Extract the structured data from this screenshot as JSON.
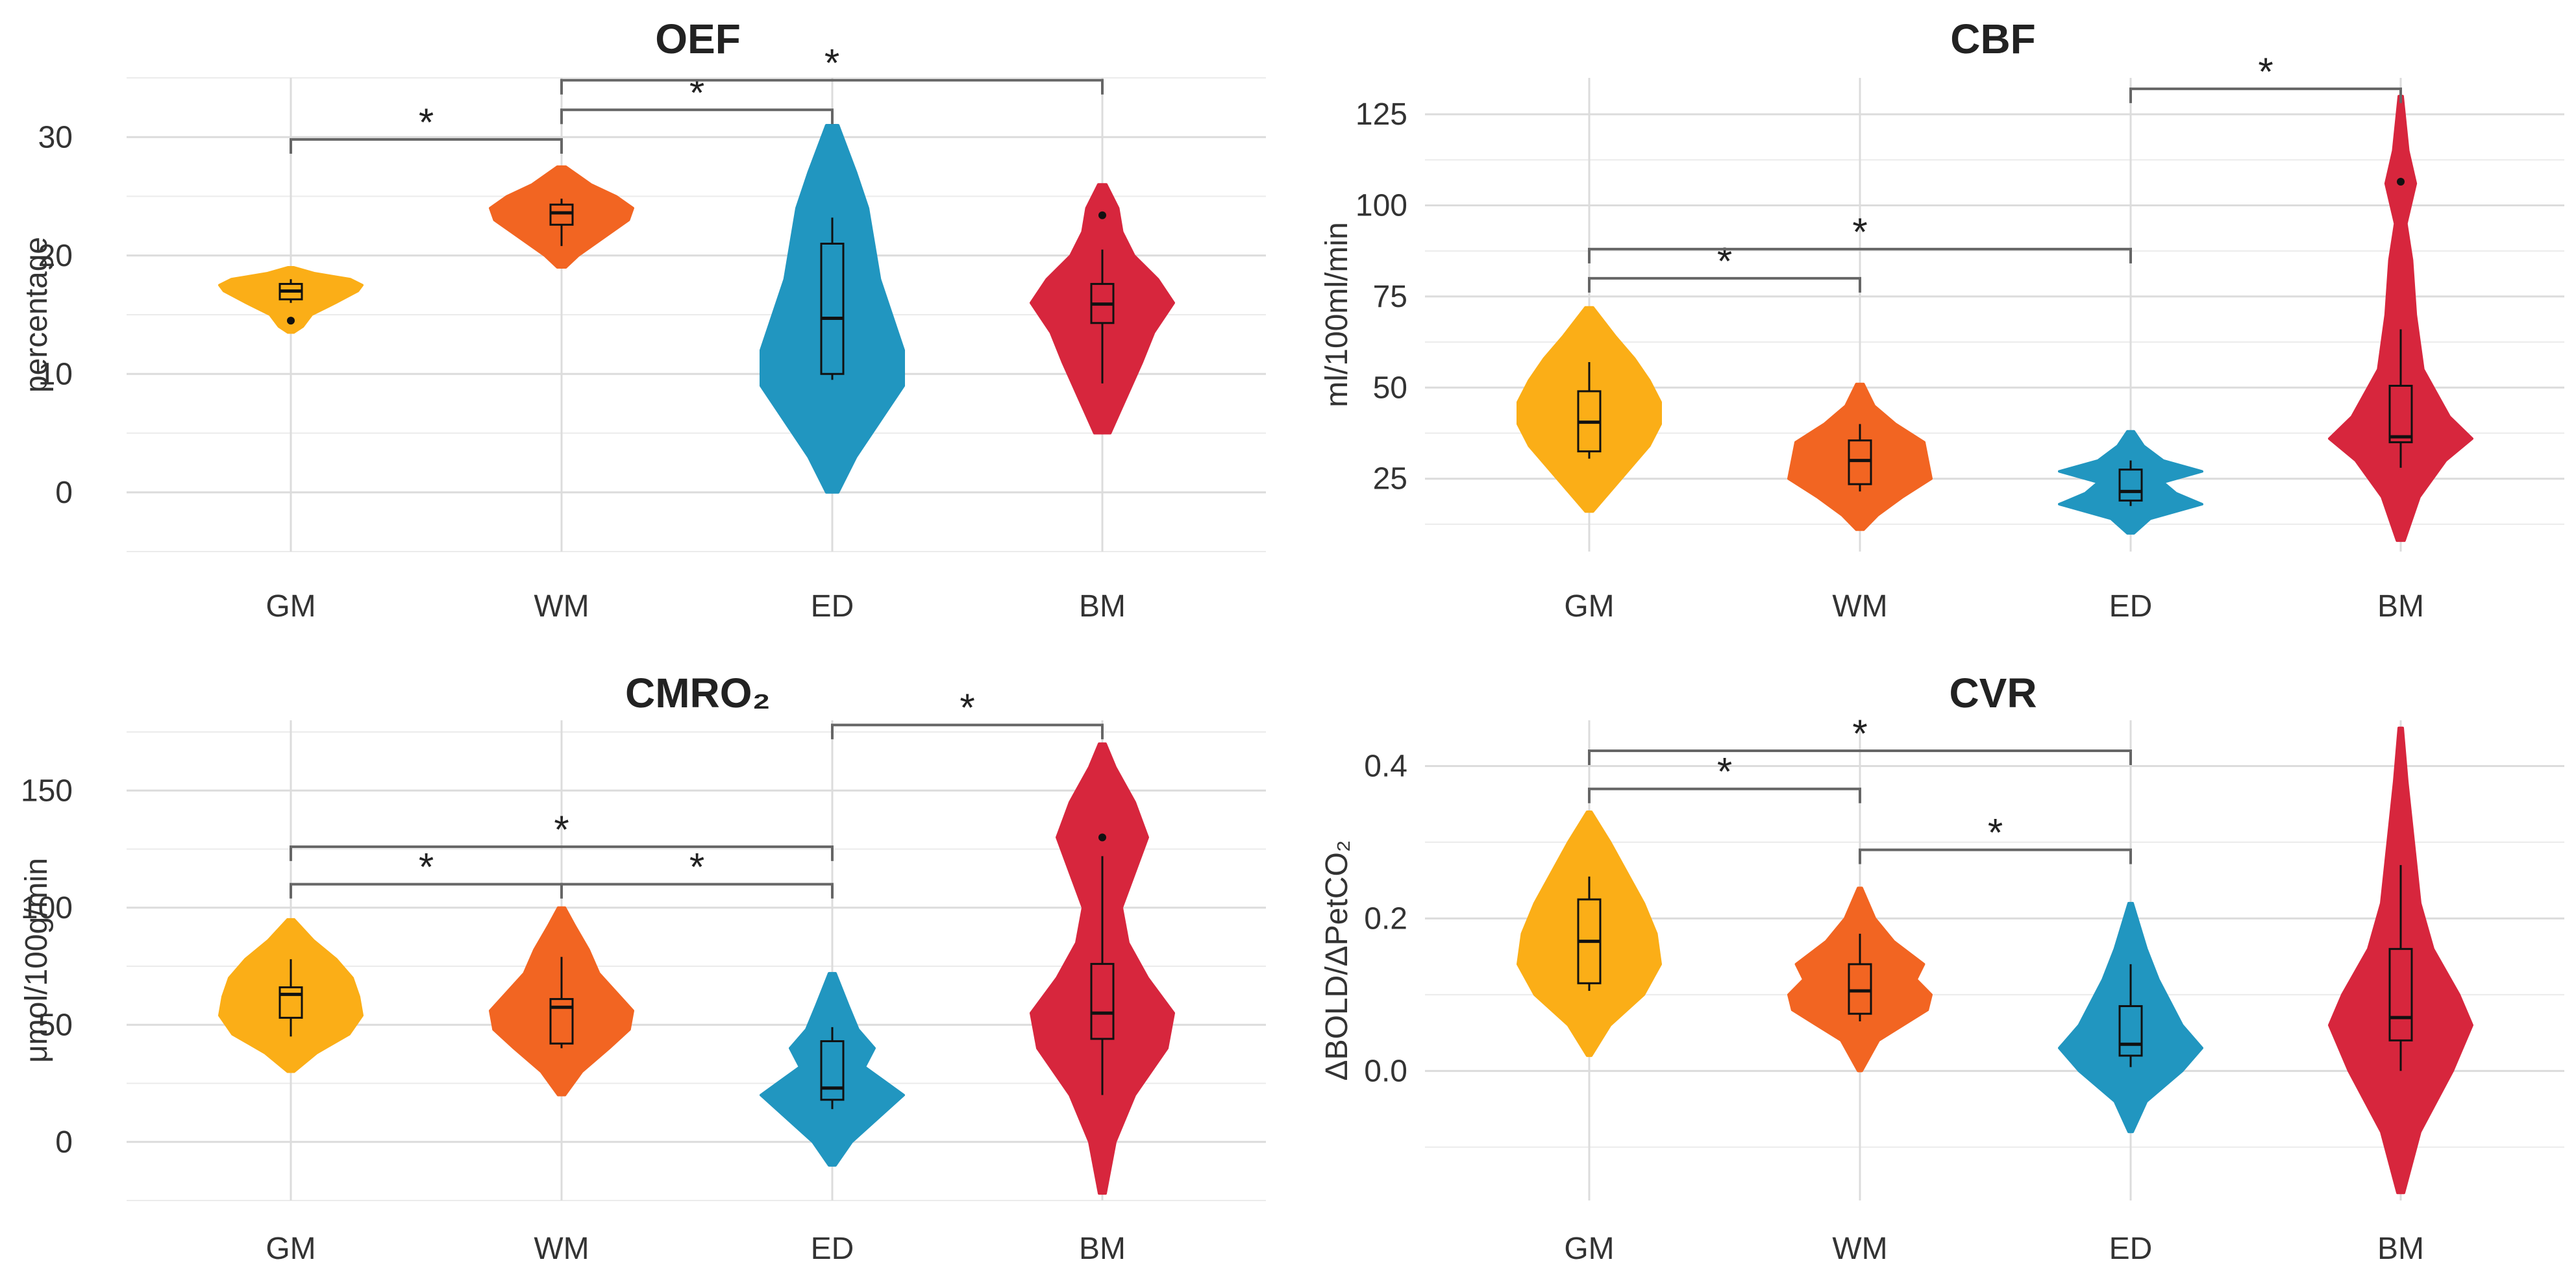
{
  "chart_data": [
    {
      "type": "violin",
      "title": "OEF",
      "xlabel": "",
      "ylabel": "percentage",
      "ylim": [
        -5,
        35
      ],
      "yticks": [
        0,
        10,
        20,
        30
      ],
      "categories": [
        "GM",
        "WM",
        "ED",
        "BM"
      ],
      "colors": [
        "#FBAE17",
        "#F26522",
        "#2196C0",
        "#D7263D"
      ],
      "violins": [
        {
          "category": "GM",
          "min": 13.5,
          "max": 19,
          "profile": [
            [
              13.5,
              2
            ],
            [
              14,
              8
            ],
            [
              15,
              14
            ],
            [
              16,
              30
            ],
            [
              17,
              45
            ],
            [
              17.5,
              48
            ],
            [
              18,
              40
            ],
            [
              18.5,
              16
            ],
            [
              19,
              2
            ]
          ]
        },
        {
          "category": "WM",
          "min": 19,
          "max": 27.5,
          "profile": [
            [
              19,
              2
            ],
            [
              20,
              8
            ],
            [
              21,
              16
            ],
            [
              22,
              24
            ],
            [
              23,
              32
            ],
            [
              24,
              34
            ],
            [
              25,
              26
            ],
            [
              26,
              14
            ],
            [
              27.5,
              2
            ]
          ]
        },
        {
          "category": "ED",
          "min": 0,
          "max": 31,
          "profile": [
            [
              0,
              0.5
            ],
            [
              3,
              2
            ],
            [
              6,
              4
            ],
            [
              9,
              6
            ],
            [
              12,
              6
            ],
            [
              15,
              5
            ],
            [
              18,
              4
            ],
            [
              21,
              3.5
            ],
            [
              24,
              3
            ],
            [
              27,
              2
            ],
            [
              31,
              0.5
            ]
          ]
        },
        {
          "category": "BM",
          "min": 5,
          "max": 26,
          "profile": [
            [
              5,
              2
            ],
            [
              8,
              6
            ],
            [
              11,
              10
            ],
            [
              13.5,
              13
            ],
            [
              16,
              18
            ],
            [
              18,
              14
            ],
            [
              20,
              8
            ],
            [
              22,
              5
            ],
            [
              24,
              4
            ],
            [
              26,
              1
            ]
          ]
        }
      ],
      "boxes": [
        {
          "category": "GM",
          "q1": 16.3,
          "median": 17,
          "q3": 17.6,
          "whisker_low": 16,
          "whisker_high": 18,
          "outliers": [
            14.5
          ]
        },
        {
          "category": "WM",
          "q1": 22.6,
          "median": 23.6,
          "q3": 24.3,
          "whisker_low": 20.8,
          "whisker_high": 24.8,
          "outliers": []
        },
        {
          "category": "ED",
          "q1": 10,
          "median": 14.7,
          "q3": 21,
          "whisker_low": 9.5,
          "whisker_high": 23.2,
          "outliers": []
        },
        {
          "category": "BM",
          "q1": 14.3,
          "median": 15.9,
          "q3": 17.6,
          "whisker_low": 9.2,
          "whisker_high": 20.5,
          "outliers": [
            23.4
          ]
        }
      ],
      "significance": [
        {
          "from": "GM",
          "to": "WM",
          "y": 29.8,
          "label": "*"
        },
        {
          "from": "WM",
          "to": "ED",
          "y": 32.3,
          "label": "*"
        },
        {
          "from": "WM",
          "to": "BM",
          "y": 34.8,
          "label": "*"
        }
      ]
    },
    {
      "type": "violin",
      "title": "CBF",
      "xlabel": "",
      "ylabel": "ml/100ml/min",
      "ylim": [
        5,
        135
      ],
      "yticks": [
        25,
        50,
        75,
        100,
        125
      ],
      "categories": [
        "GM",
        "WM",
        "ED",
        "BM"
      ],
      "colors": [
        "#FBAE17",
        "#F26522",
        "#2196C0",
        "#D7263D"
      ],
      "violins": [
        {
          "category": "GM",
          "min": 16,
          "max": 72,
          "profile": [
            [
              16,
              1
            ],
            [
              22,
              6
            ],
            [
              28,
              11
            ],
            [
              34,
              16
            ],
            [
              40,
              19
            ],
            [
              46,
              19
            ],
            [
              52,
              16
            ],
            [
              58,
              12
            ],
            [
              64,
              7
            ],
            [
              72,
              1
            ]
          ]
        },
        {
          "category": "WM",
          "min": 11,
          "max": 51,
          "profile": [
            [
              11,
              1
            ],
            [
              15,
              5
            ],
            [
              20,
              12
            ],
            [
              25,
              20
            ],
            [
              30,
              19
            ],
            [
              35,
              18
            ],
            [
              40,
              10
            ],
            [
              45,
              4
            ],
            [
              51,
              1
            ]
          ]
        },
        {
          "category": "ED",
          "min": 10,
          "max": 38,
          "profile": [
            [
              10,
              1
            ],
            [
              14,
              6
            ],
            [
              18,
              22
            ],
            [
              21,
              14
            ],
            [
              24,
              10
            ],
            [
              27,
              22
            ],
            [
              30,
              10
            ],
            [
              34,
              4
            ],
            [
              38,
              1
            ]
          ]
        },
        {
          "category": "BM",
          "min": 8,
          "max": 130,
          "profile": [
            [
              8,
              1
            ],
            [
              20,
              5
            ],
            [
              30,
              12
            ],
            [
              36,
              19
            ],
            [
              42,
              13
            ],
            [
              55,
              6
            ],
            [
              70,
              4
            ],
            [
              85,
              3
            ],
            [
              95,
              1.5
            ],
            [
              106,
              4
            ],
            [
              115,
              2
            ],
            [
              130,
              0.5
            ]
          ]
        }
      ],
      "boxes": [
        {
          "category": "GM",
          "q1": 32.5,
          "median": 40.5,
          "q3": 49,
          "whisker_low": 30.5,
          "whisker_high": 57,
          "outliers": []
        },
        {
          "category": "WM",
          "q1": 23.5,
          "median": 30,
          "q3": 35.5,
          "whisker_low": 21.5,
          "whisker_high": 40,
          "outliers": []
        },
        {
          "category": "ED",
          "q1": 19,
          "median": 21.5,
          "q3": 27.5,
          "whisker_low": 17.5,
          "whisker_high": 30,
          "outliers": []
        },
        {
          "category": "BM",
          "q1": 35,
          "median": 36.5,
          "q3": 50.5,
          "whisker_low": 28,
          "whisker_high": 66,
          "outliers": [
            106.5
          ]
        }
      ],
      "significance": [
        {
          "from": "GM",
          "to": "WM",
          "y": 80,
          "label": "*"
        },
        {
          "from": "GM",
          "to": "ED",
          "y": 88,
          "label": "*"
        },
        {
          "from": "ED",
          "to": "BM",
          "y": 132,
          "label": "*"
        }
      ]
    },
    {
      "type": "violin",
      "title": "CMRO₂",
      "xlabel": "",
      "ylabel": "μmol/100g/min",
      "ylim": [
        -25,
        180
      ],
      "yticks": [
        0,
        50,
        100,
        150
      ],
      "categories": [
        "GM",
        "WM",
        "ED",
        "BM"
      ],
      "colors": [
        "#FBAE17",
        "#F26522",
        "#2196C0",
        "#D7263D"
      ],
      "violins": [
        {
          "category": "GM",
          "min": 30,
          "max": 95,
          "profile": [
            [
              30,
              1
            ],
            [
              38,
              8
            ],
            [
              46,
              18
            ],
            [
              54,
              22
            ],
            [
              62,
              21
            ],
            [
              70,
              19
            ],
            [
              78,
              14
            ],
            [
              86,
              7
            ],
            [
              95,
              1
            ]
          ]
        },
        {
          "category": "WM",
          "min": 20,
          "max": 100,
          "profile": [
            [
              20,
              1
            ],
            [
              30,
              6
            ],
            [
              40,
              14
            ],
            [
              48,
              20
            ],
            [
              56,
              21
            ],
            [
              64,
              16
            ],
            [
              72,
              11
            ],
            [
              82,
              8
            ],
            [
              92,
              4
            ],
            [
              100,
              1
            ]
          ]
        },
        {
          "category": "ED",
          "min": -10,
          "max": 72,
          "profile": [
            [
              -10,
              1
            ],
            [
              0,
              6
            ],
            [
              10,
              14
            ],
            [
              20,
              22
            ],
            [
              26,
              16
            ],
            [
              32,
              10
            ],
            [
              40,
              13
            ],
            [
              48,
              8
            ],
            [
              58,
              5
            ],
            [
              72,
              1
            ]
          ]
        },
        {
          "category": "BM",
          "min": -22,
          "max": 170,
          "profile": [
            [
              -22,
              0.5
            ],
            [
              0,
              2
            ],
            [
              20,
              5
            ],
            [
              40,
              10
            ],
            [
              55,
              11
            ],
            [
              70,
              7
            ],
            [
              85,
              4
            ],
            [
              100,
              3
            ],
            [
              115,
              5
            ],
            [
              130,
              7
            ],
            [
              145,
              5
            ],
            [
              160,
              2
            ],
            [
              170,
              0.5
            ]
          ]
        }
      ],
      "boxes": [
        {
          "category": "GM",
          "q1": 53,
          "median": 63,
          "q3": 66,
          "whisker_low": 45,
          "whisker_high": 78,
          "outliers": []
        },
        {
          "category": "WM",
          "q1": 42,
          "median": 57.5,
          "q3": 61,
          "whisker_low": 40,
          "whisker_high": 79,
          "outliers": []
        },
        {
          "category": "ED",
          "q1": 18,
          "median": 23,
          "q3": 43,
          "whisker_low": 14,
          "whisker_high": 49,
          "outliers": []
        },
        {
          "category": "BM",
          "q1": 44,
          "median": 55,
          "q3": 76,
          "whisker_low": 20,
          "whisker_high": 122,
          "outliers": [
            130
          ]
        }
      ],
      "significance": [
        {
          "from": "GM",
          "to": "WM",
          "y": 110,
          "label": "*"
        },
        {
          "from": "WM",
          "to": "ED",
          "y": 110,
          "label": "*"
        },
        {
          "from": "GM",
          "to": "ED",
          "y": 126,
          "label": "*"
        },
        {
          "from": "ED",
          "to": "BM",
          "y": 178,
          "label": "*"
        }
      ]
    },
    {
      "type": "violin",
      "title": "CVR",
      "xlabel": "",
      "ylabel": "ΔBOLD/ΔPetCO₂",
      "ylim": [
        -0.17,
        0.46
      ],
      "yticks": [
        0.0,
        0.2,
        0.4
      ],
      "ytick_format": 1,
      "categories": [
        "GM",
        "WM",
        "ED",
        "BM"
      ],
      "colors": [
        "#FBAE17",
        "#F26522",
        "#2196C0",
        "#D7263D"
      ],
      "violins": [
        {
          "category": "GM",
          "min": 0.02,
          "max": 0.34,
          "profile": [
            [
              0.02,
              0.5
            ],
            [
              0.06,
              5
            ],
            [
              0.1,
              13
            ],
            [
              0.14,
              17
            ],
            [
              0.18,
              16
            ],
            [
              0.22,
              13
            ],
            [
              0.26,
              9
            ],
            [
              0.3,
              5
            ],
            [
              0.34,
              0.5
            ]
          ]
        },
        {
          "category": "WM",
          "min": 0.0,
          "max": 0.24,
          "profile": [
            [
              0,
              0.5
            ],
            [
              0.04,
              5
            ],
            [
              0.08,
              18
            ],
            [
              0.1,
              19
            ],
            [
              0.12,
              15
            ],
            [
              0.14,
              17
            ],
            [
              0.17,
              9
            ],
            [
              0.2,
              4
            ],
            [
              0.24,
              0.5
            ]
          ]
        },
        {
          "category": "ED",
          "min": -0.08,
          "max": 0.22,
          "profile": [
            [
              -0.08,
              0.5
            ],
            [
              -0.04,
              4
            ],
            [
              0,
              13
            ],
            [
              0.03,
              18
            ],
            [
              0.06,
              13
            ],
            [
              0.09,
              10
            ],
            [
              0.12,
              7
            ],
            [
              0.16,
              4
            ],
            [
              0.22,
              0.5
            ]
          ]
        },
        {
          "category": "BM",
          "min": -0.16,
          "max": 0.45,
          "profile": [
            [
              -0.16,
              0.5
            ],
            [
              -0.08,
              3
            ],
            [
              0,
              8
            ],
            [
              0.06,
              11
            ],
            [
              0.1,
              9
            ],
            [
              0.16,
              5
            ],
            [
              0.22,
              3
            ],
            [
              0.3,
              2
            ],
            [
              0.38,
              1
            ],
            [
              0.45,
              0.3
            ]
          ]
        }
      ],
      "boxes": [
        {
          "category": "GM",
          "q1": 0.115,
          "median": 0.17,
          "q3": 0.225,
          "whisker_low": 0.105,
          "whisker_high": 0.255,
          "outliers": []
        },
        {
          "category": "WM",
          "q1": 0.075,
          "median": 0.105,
          "q3": 0.14,
          "whisker_low": 0.065,
          "whisker_high": 0.18,
          "outliers": []
        },
        {
          "category": "ED",
          "q1": 0.02,
          "median": 0.035,
          "q3": 0.085,
          "whisker_low": 0.005,
          "whisker_high": 0.14,
          "outliers": []
        },
        {
          "category": "BM",
          "q1": 0.04,
          "median": 0.07,
          "q3": 0.16,
          "whisker_low": 0.0,
          "whisker_high": 0.27,
          "outliers": []
        }
      ],
      "significance": [
        {
          "from": "GM",
          "to": "WM",
          "y": 0.37,
          "label": "*"
        },
        {
          "from": "GM",
          "to": "ED",
          "y": 0.42,
          "label": "*"
        },
        {
          "from": "WM",
          "to": "ED",
          "y": 0.29,
          "label": "*"
        }
      ]
    }
  ]
}
